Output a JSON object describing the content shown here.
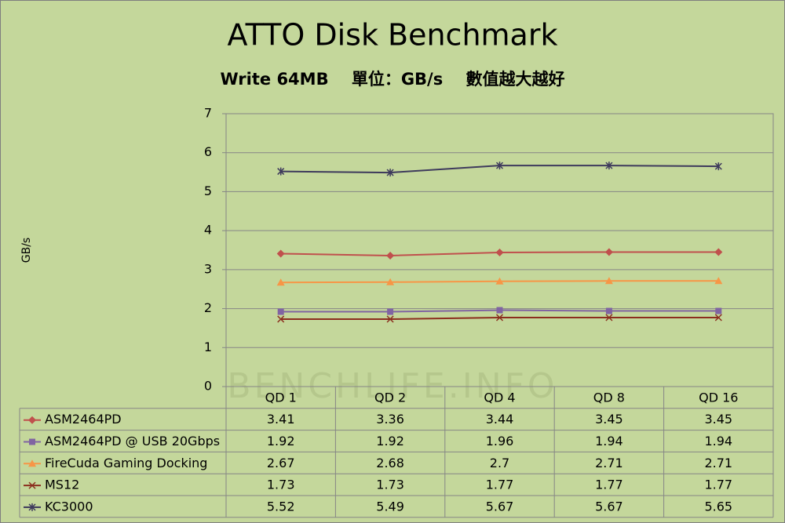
{
  "chart_data": {
    "type": "line",
    "title": "ATTO Disk Benchmark",
    "subtitle": "Write 64MB    單位：GB/s    數值越大越好",
    "y_label": "GB/s",
    "watermark": "BENCHLIFE.INFO",
    "categories": [
      "QD 1",
      "QD 2",
      "QD 4",
      "QD 8",
      "QD 16"
    ],
    "series": [
      {
        "name": "ASM2464PD",
        "color": "#c0504d",
        "marker": "diamond",
        "values": [
          3.41,
          3.36,
          3.44,
          3.45,
          3.45
        ]
      },
      {
        "name": "ASM2464PD @ USB 20Gbps",
        "color": "#8064a2",
        "marker": "square",
        "values": [
          1.92,
          1.92,
          1.96,
          1.94,
          1.94
        ]
      },
      {
        "name": "FireCuda Gaming Docking",
        "color": "#f79646",
        "marker": "triangle",
        "values": [
          2.67,
          2.68,
          2.7,
          2.71,
          2.71
        ]
      },
      {
        "name": "MS12",
        "color": "#8b2e1e",
        "marker": "x",
        "values": [
          1.73,
          1.73,
          1.77,
          1.77,
          1.77
        ]
      },
      {
        "name": "KC3000",
        "color": "#3e3a5c",
        "marker": "star",
        "values": [
          5.52,
          5.49,
          5.67,
          5.67,
          5.65
        ]
      }
    ],
    "ylim": [
      0,
      7
    ],
    "yticks": [
      0,
      1,
      2,
      3,
      4,
      5,
      6,
      7
    ],
    "grid": true
  }
}
